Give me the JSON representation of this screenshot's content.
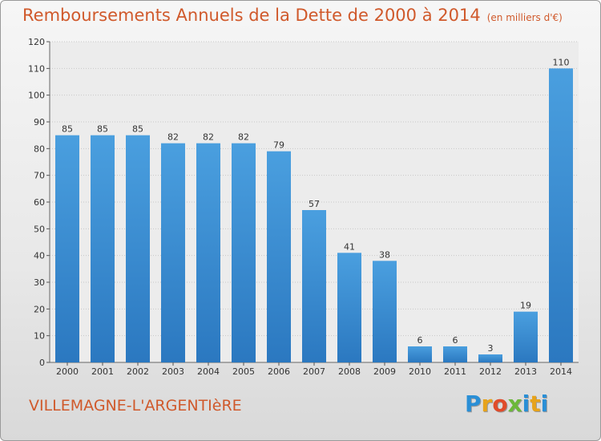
{
  "title": {
    "main": "Remboursements Annuels de la Dette de 2000 à 2014",
    "unit": "(en milliers d'€)"
  },
  "commune": "VILLEMAGNE-L'ARGENTIèRE",
  "logo": {
    "letters": [
      "P",
      "r",
      "o",
      "x",
      "i",
      "t",
      "i"
    ]
  },
  "colors": {
    "bar": "#4a9fdf",
    "bar_dark": "#2b78c0",
    "title": "#d0592b",
    "grid": "#c8c8c8"
  },
  "chart_data": {
    "type": "bar",
    "categories": [
      "2000",
      "2001",
      "2002",
      "2003",
      "2004",
      "2005",
      "2006",
      "2007",
      "2008",
      "2009",
      "2010",
      "2011",
      "2012",
      "2013",
      "2014"
    ],
    "values": [
      85,
      85,
      85,
      82,
      82,
      82,
      79,
      57,
      41,
      38,
      6,
      6,
      3,
      19,
      110
    ],
    "yticks": [
      0,
      10,
      20,
      30,
      40,
      50,
      60,
      70,
      80,
      90,
      100,
      110,
      120
    ],
    "ylim": [
      0,
      120
    ],
    "grid": true,
    "data_labels": true
  }
}
